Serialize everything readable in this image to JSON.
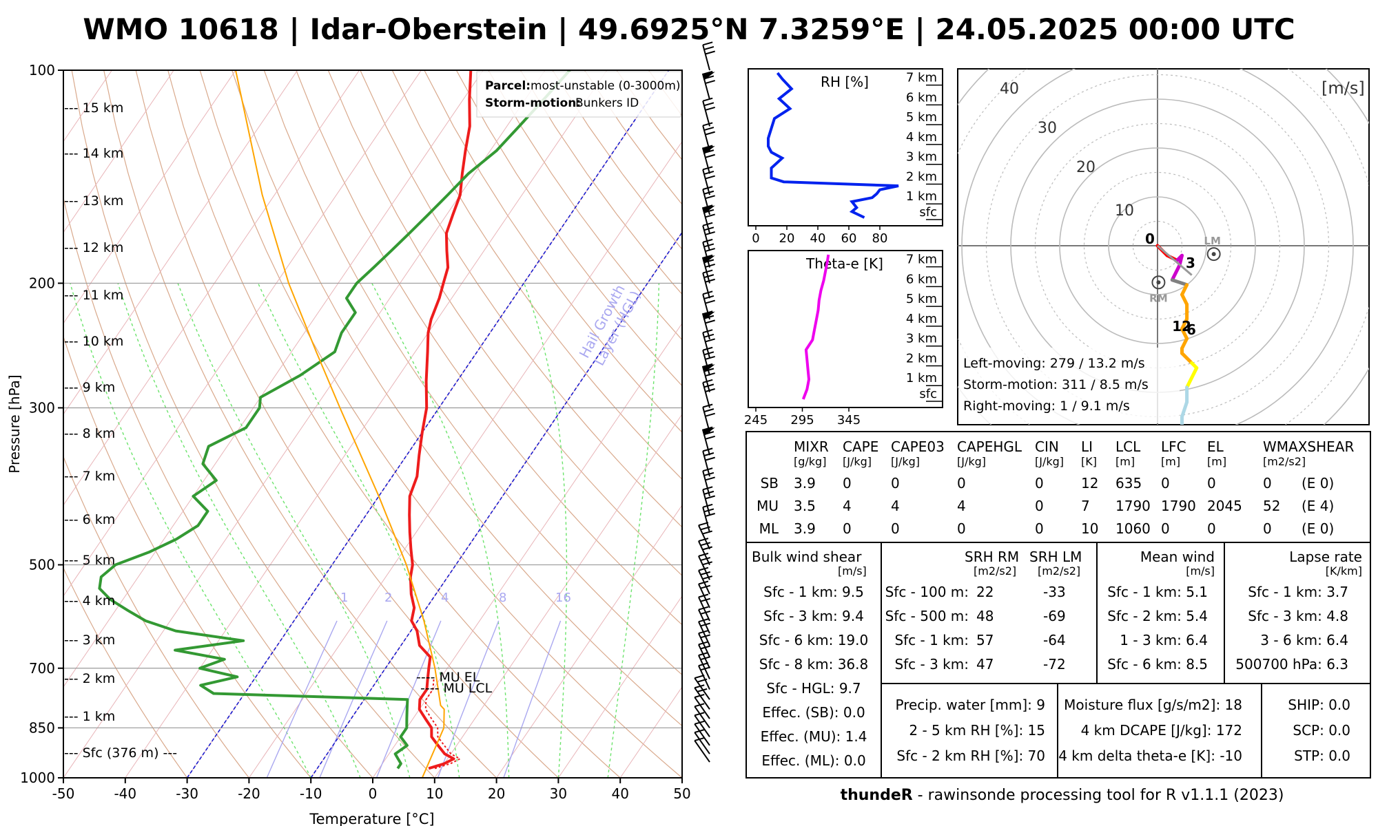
{
  "title": "WMO 10618 | Idar-Oberstein | 49.6925°N 7.3259°E | 24.05.2025 00:00 UTC",
  "footer": {
    "bold": "thundeR",
    "rest": " - rawinsonde processing tool for R v1.1.1 (2023)"
  },
  "skewt": {
    "ylabel": "Pressure [hPa]",
    "xlabel": "Temperature [°C]",
    "pressure_ticks": [
      "100",
      "200",
      "300",
      "500",
      "700",
      "850",
      "1000"
    ],
    "temp_ticks": [
      "-50",
      "-40",
      "-30",
      "-20",
      "-10",
      "0",
      "10",
      "20",
      "30",
      "40",
      "50"
    ],
    "height_labels": [
      "--- 15 km",
      "--- 14 km",
      "--- 13 km",
      "--- 12 km",
      "--- 11 km",
      "--- 10 km",
      "--- 9 km",
      "--- 8 km",
      "--- 7 km",
      "--- 6 km",
      "--- 5 km",
      "--- 4 km",
      "--- 3 km",
      "--- 2 km",
      "--- 1 km",
      "--- Sfc (376 m) ---"
    ],
    "mixing_ratio_labels": [
      "1",
      "2",
      "4",
      "8",
      "16"
    ],
    "hgl_label_1": "Hail Growth",
    "hgl_label_2": "Layer (HGL)",
    "mu_el": "---- MU EL",
    "mu_lcl": "---- MU LCL",
    "legend": {
      "parcel_key": "Parcel:",
      "parcel_val": "most-unstable (0-3000m)",
      "storm_key": "Storm-motion:",
      "storm_val": "Bunkers ID"
    }
  },
  "rh_panel": {
    "title": "RH [%]",
    "x_ticks": [
      "0",
      "20",
      "40",
      "60",
      "80"
    ],
    "levels": [
      "7 km",
      "6 km",
      "5 km",
      "4 km",
      "3 km",
      "2 km",
      "1 km",
      "sfc"
    ]
  },
  "thetae_panel": {
    "title": "Theta-e [K]",
    "x_ticks": [
      "245",
      "295",
      "345"
    ],
    "levels": [
      "7 km",
      "6 km",
      "5 km",
      "4 km",
      "3 km",
      "2 km",
      "1 km",
      "sfc"
    ]
  },
  "hodograph": {
    "unit": "[m/s]",
    "ring_labels": [
      "10",
      "20",
      "30",
      "40"
    ],
    "height_marks": [
      "0",
      "3",
      "6",
      "12"
    ],
    "lm_label": "LM",
    "rm_label": "RM",
    "left_moving": "Left-moving: 279 / 13.2 m/s",
    "storm_motion": "Storm-motion: 311 / 8.5 m/s",
    "right_moving": "Right-moving: 1 / 9.1 m/s",
    "colors": {
      "0-1km": "#ff0000",
      "1-3km": "#cc00cc",
      "3-6km": "#808080",
      "6-9km": "#ffa500",
      "9-12km": "#ffff00",
      "12+km": "#add8e6"
    }
  },
  "chart_data": {
    "type": "line",
    "title": "WMO 10618 | Idar-Oberstein | 49.6925°N 7.3259°E | 24.05.2025 00:00 UTC",
    "xlabel": "Temperature [°C]",
    "ylabel": "Pressure [hPa]",
    "xlim": [
      -50,
      50
    ],
    "ylim": [
      1000,
      100
    ],
    "series": [
      {
        "name": "Temperature",
        "color": "#ee1c1c",
        "p": [
          970,
          955,
          940,
          925,
          900,
          875,
          850,
          825,
          800,
          775,
          750,
          725,
          700,
          675,
          650,
          620,
          600,
          575,
          550,
          520,
          500,
          475,
          450,
          425,
          400,
          375,
          350,
          325,
          300,
          275,
          250,
          235,
          225,
          210,
          200,
          190,
          180,
          170,
          160,
          150,
          140,
          130,
          120,
          110,
          100
        ],
        "t": [
          8,
          10,
          11,
          9,
          7,
          5,
          4,
          2,
          0,
          -1,
          -1,
          -2,
          -3,
          -4,
          -7,
          -9,
          -11,
          -12,
          -14,
          -16,
          -17,
          -19,
          -21,
          -23,
          -25,
          -26,
          -28,
          -30,
          -32,
          -35,
          -38,
          -40,
          -41,
          -42,
          -43,
          -44,
          -46,
          -48,
          -49,
          -50,
          -52,
          -54,
          -56,
          -59,
          -62
        ]
      },
      {
        "name": "Dewpoint",
        "color": "#339933",
        "p": [
          970,
          955,
          940,
          925,
          900,
          875,
          850,
          825,
          800,
          775,
          760,
          740,
          720,
          700,
          680,
          660,
          640,
          620,
          600,
          580,
          560,
          540,
          520,
          500,
          480,
          460,
          440,
          420,
          400,
          380,
          360,
          340,
          320,
          300,
          290,
          270,
          250,
          235,
          220,
          210,
          200,
          190,
          180,
          170,
          160,
          150,
          140,
          130,
          120,
          110,
          100
        ],
        "t": [
          3,
          3,
          2,
          1,
          2,
          0,
          0,
          -1,
          -2,
          -3,
          -35,
          -38,
          -33,
          -40,
          -37,
          -46,
          -36,
          -48,
          -54,
          -58,
          -62,
          -65,
          -66,
          -65,
          -61,
          -58,
          -56,
          -56,
          -60,
          -58,
          -62,
          -63,
          -59,
          -59,
          -60,
          -56,
          -53,
          -54,
          -54,
          -57,
          -57,
          -56,
          -55,
          -54,
          -53,
          -52,
          -51,
          -49,
          -48,
          -47,
          -46
        ]
      },
      {
        "name": "MU parcel",
        "color": "#ffa500",
        "p": [
          1000,
          850,
          800,
          790,
          700,
          600,
          500,
          400,
          300,
          250,
          200,
          150,
          100
        ],
        "t": [
          8,
          6,
          4,
          3,
          -2,
          -9,
          -18,
          -30,
          -46,
          -56,
          -68,
          -82,
          -100
        ]
      }
    ],
    "hail_growth_layer": {
      "isotherms_c": [
        -10,
        -30
      ]
    },
    "rh_profile": {
      "height_km": [
        0,
        0.3,
        0.5,
        0.8,
        1,
        1.2,
        1.4,
        1.6,
        1.8,
        2,
        2.5,
        3,
        3.3,
        3.6,
        4,
        4.5,
        5,
        5.5,
        6,
        6.5,
        7,
        7.3
      ],
      "rh_pct": [
        70,
        62,
        65,
        62,
        75,
        78,
        80,
        92,
        18,
        10,
        10,
        17,
        10,
        8,
        8,
        10,
        12,
        22,
        15,
        23,
        17,
        14
      ]
    },
    "thetae_profile": {
      "height_km": [
        0,
        0.5,
        1,
        1.5,
        2,
        2.5,
        3,
        3.5,
        4,
        4.5,
        5,
        5.5,
        6,
        6.5,
        7,
        7.3
      ],
      "thetae_k": [
        296,
        300,
        302,
        301,
        300,
        299,
        306,
        308,
        310,
        312,
        313,
        315,
        318,
        320,
        322,
        323
      ]
    },
    "hodograph": {
      "u": [
        0,
        2,
        4,
        5,
        4.5,
        3,
        6,
        5,
        6,
        6,
        5,
        6,
        5,
        5,
        7,
        8,
        6,
        6,
        5,
        5
      ],
      "v": [
        0,
        -2,
        -3,
        -2,
        -4,
        -7,
        -8,
        -10,
        -12,
        -15,
        -17,
        -19,
        -21,
        -22,
        -24,
        -25,
        -29,
        -32,
        -35,
        -37
      ]
    },
    "params": {
      "headers": [
        "MIXR",
        "CAPE",
        "CAPE03",
        "CAPEHGL",
        "CIN",
        "LI",
        "LCL",
        "LFC",
        "EL",
        "WMAXSHEAR"
      ],
      "units": [
        "[g/kg]",
        "[J/kg]",
        "[J/kg]",
        "[J/kg]",
        "[J/kg]",
        "[K]",
        "[m]",
        "[m]",
        "[m]",
        "[m2/s2]"
      ],
      "rows": [
        {
          "label": "SB",
          "values": [
            "3.9",
            "0",
            "0",
            "0",
            "0",
            "12",
            "635",
            "0",
            "0",
            "0",
            "(E 0)"
          ]
        },
        {
          "label": "MU",
          "values": [
            "3.5",
            "4",
            "4",
            "4",
            "0",
            "7",
            "1790",
            "1790",
            "2045",
            "52",
            "(E 4)"
          ]
        },
        {
          "label": "ML",
          "values": [
            "3.9",
            "0",
            "0",
            "0",
            "0",
            "10",
            "1060",
            "0",
            "0",
            "0",
            "(E 0)"
          ]
        }
      ]
    },
    "bulk_shear": {
      "title": "Bulk wind shear",
      "unit": "[m/s]",
      "rows": [
        "Sfc - 1 km: 9.5",
        "Sfc - 3 km: 9.4",
        "Sfc - 6 km: 19.0",
        "Sfc - 8 km: 36.8",
        "Sfc - HGL: 9.7",
        "Effec. (SB): 0.0",
        "Effec. (MU): 1.4",
        "Effec. (ML): 0.0"
      ]
    },
    "srh": {
      "h1": "SRH RM",
      "h2": "SRH LM",
      "u1": "[m2/s2]",
      "u2": "[m2/s2]",
      "rows": [
        {
          "label": "Sfc - 100 m:",
          "rm": "22",
          "lm": "-33"
        },
        {
          "label": "Sfc - 500 m:",
          "rm": "48",
          "lm": "-69"
        },
        {
          "label": "Sfc - 1 km:",
          "rm": "57",
          "lm": "-64"
        },
        {
          "label": "Sfc - 3 km:",
          "rm": "47",
          "lm": "-72"
        }
      ]
    },
    "mean_wind": {
      "title": "Mean wind",
      "unit": "[m/s]",
      "rows": [
        "Sfc - 1 km: 5.1",
        "Sfc - 2 km: 5.4",
        "1 - 3 km: 6.4",
        "Sfc - 6 km: 8.5"
      ]
    },
    "lapse_rate": {
      "title": "Lapse rate",
      "unit": "[K/km]",
      "rows": [
        "Sfc - 1 km: 3.7",
        "Sfc - 3 km: 4.8",
        "3 - 6 km: 6.4",
        "500700 hPa: 6.3"
      ]
    },
    "moisture": {
      "rows": [
        "Precip. water [mm]: 9",
        "2 - 5 km RH [%]: 15",
        "Sfc - 2 km RH [%]: 70"
      ]
    },
    "flux": {
      "rows": [
        "Moisture flux [g/s/m2]: 18",
        "4 km DCAPE [J/kg]: 172",
        "4 km delta theta-e [K]: -10"
      ]
    },
    "composites": {
      "rows": [
        "SHIP: 0.0",
        "SCP: 0.0",
        "STP: 0.0"
      ]
    }
  }
}
